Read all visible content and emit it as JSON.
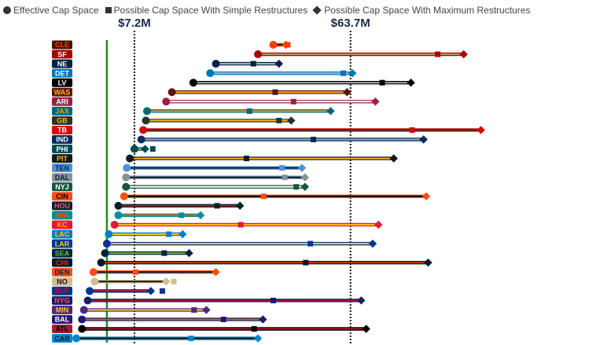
{
  "legend": {
    "effective": "Effective Cap Space",
    "simple": "Possible Cap Space With Simple Restructures",
    "maximum": "Possible Cap Space With Maximum Restructures"
  },
  "chart_data": {
    "type": "dumbbell",
    "title": "",
    "xlabel": "",
    "ylabel": "",
    "legend_position": "top-left",
    "grid": false,
    "xlim": [
      -8,
      109
    ],
    "reference_lines": [
      {
        "label": "$7.2M",
        "value": 7.2,
        "style": "dotted",
        "color": "#111111"
      },
      {
        "label": "$63.7M",
        "value": 63.7,
        "style": "dotted",
        "color": "#111111"
      },
      {
        "label": "",
        "value": 0,
        "style": "solid",
        "color": "#1f8f1f"
      }
    ],
    "series": [
      {
        "team": "CLE",
        "effective": 43.5,
        "simple": 47.3,
        "maximum": 46.8,
        "primary": "#ff3c00",
        "secondary": "#311d00",
        "label_bg": "#311d00",
        "label_fg": "#ff3c00"
      },
      {
        "team": "SF",
        "effective": 39.5,
        "simple": 86.5,
        "maximum": 93.3,
        "primary": "#aa0000",
        "secondary": "#b3995d",
        "label_bg": "#aa0000",
        "label_fg": "#ffffff"
      },
      {
        "team": "NE",
        "effective": 28.5,
        "simple": 38.3,
        "maximum": 45.0,
        "primary": "#002244",
        "secondary": "#b0b7bc",
        "label_bg": "#002244",
        "label_fg": "#ffffff"
      },
      {
        "team": "DET",
        "effective": 27.0,
        "simple": 61.8,
        "maximum": 64.2,
        "primary": "#0076b6",
        "secondary": "#b0b7bc",
        "label_bg": "#0076b6",
        "label_fg": "#ffffff"
      },
      {
        "team": "LV",
        "effective": 22.6,
        "simple": 72.0,
        "maximum": 79.5,
        "primary": "#000000",
        "secondary": "#a5acaf",
        "label_bg": "#000000",
        "label_fg": "#ffffff"
      },
      {
        "team": "WAS",
        "effective": 17.0,
        "simple": 44.0,
        "maximum": 62.8,
        "primary": "#5a1414",
        "secondary": "#ffb612",
        "label_bg": "#5a1414",
        "label_fg": "#ffb612"
      },
      {
        "team": "ARI",
        "effective": 15.5,
        "simple": 48.8,
        "maximum": 70.2,
        "primary": "#97233f",
        "secondary": "#ffffff",
        "label_bg": "#97233f",
        "label_fg": "#ffffff"
      },
      {
        "team": "JAX",
        "effective": 10.5,
        "simple": 37.3,
        "maximum": 58.5,
        "primary": "#006778",
        "secondary": "#d7a22a",
        "label_bg": "#006778",
        "label_fg": "#d7a22a"
      },
      {
        "team": "GB",
        "effective": 10.2,
        "simple": 45.0,
        "maximum": 48.2,
        "primary": "#203731",
        "secondary": "#ffb612",
        "label_bg": "#203731",
        "label_fg": "#ffb612"
      },
      {
        "team": "TB",
        "effective": 9.5,
        "simple": 79.8,
        "maximum": 97.8,
        "primary": "#d50a0a",
        "secondary": "#34302b",
        "label_bg": "#d50a0a",
        "label_fg": "#ffffff"
      },
      {
        "team": "IND",
        "effective": 9.0,
        "simple": 54.0,
        "maximum": 82.8,
        "primary": "#002c5f",
        "secondary": "#a2aaad",
        "label_bg": "#002c5f",
        "label_fg": "#ffffff"
      },
      {
        "team": "PHI",
        "effective": 7.2,
        "simple": 12.0,
        "maximum": 10.0,
        "primary": "#004c54",
        "secondary": "#a5acaf",
        "label_bg": "#004c54",
        "label_fg": "#ffffff"
      },
      {
        "team": "PIT",
        "effective": 6.0,
        "simple": 36.5,
        "maximum": 75.0,
        "primary": "#101820",
        "secondary": "#ffb612",
        "label_bg": "#101820",
        "label_fg": "#ffb612"
      },
      {
        "team": "TEN",
        "effective": 5.2,
        "simple": 45.8,
        "maximum": 51.0,
        "primary": "#4b92db",
        "secondary": "#0c2340",
        "label_bg": "#4b92db",
        "label_fg": "#0c2340"
      },
      {
        "team": "DAL",
        "effective": 5.0,
        "simple": 46.5,
        "maximum": 51.8,
        "primary": "#869397",
        "secondary": "#041e42",
        "label_bg": "#869397",
        "label_fg": "#041e42"
      },
      {
        "team": "NYJ",
        "effective": 5.0,
        "simple": 49.5,
        "maximum": 51.8,
        "primary": "#125740",
        "secondary": "#ffffff",
        "label_bg": "#125740",
        "label_fg": "#ffffff"
      },
      {
        "team": "CIN",
        "effective": 4.5,
        "simple": 41.0,
        "maximum": 83.5,
        "primary": "#fb4f14",
        "secondary": "#000000",
        "label_bg": "#fb4f14",
        "label_fg": "#000000"
      },
      {
        "team": "HOU",
        "effective": 3.0,
        "simple": 28.8,
        "maximum": 34.8,
        "primary": "#03202f",
        "secondary": "#a71930",
        "label_bg": "#03202f",
        "label_fg": "#ff4d6a"
      },
      {
        "team": "MIA",
        "effective": 3.0,
        "simple": 19.5,
        "maximum": 24.5,
        "primary": "#008e97",
        "secondary": "#fc4c02",
        "label_bg": "#008e97",
        "label_fg": "#fc4c02"
      },
      {
        "team": "KC",
        "effective": 2.0,
        "simple": 35.0,
        "maximum": 71.0,
        "primary": "#e31837",
        "secondary": "#ffb81c",
        "label_bg": "#e31837",
        "label_fg": "#ffb81c"
      },
      {
        "team": "LAC",
        "effective": 0.5,
        "simple": 16.2,
        "maximum": 19.8,
        "primary": "#0080c6",
        "secondary": "#ffc20e",
        "label_bg": "#0080c6",
        "label_fg": "#ffc20e"
      },
      {
        "team": "LAR",
        "effective": 0.0,
        "simple": 53.2,
        "maximum": 69.5,
        "primary": "#003594",
        "secondary": "#ffd100",
        "label_bg": "#003594",
        "label_fg": "#ffd100"
      },
      {
        "team": "SEA",
        "effective": -0.5,
        "simple": 15.0,
        "maximum": 21.5,
        "primary": "#002244",
        "secondary": "#69be28",
        "label_bg": "#002244",
        "label_fg": "#69be28"
      },
      {
        "team": "CHI",
        "effective": -1.5,
        "simple": 52.0,
        "maximum": 84.0,
        "primary": "#0b162a",
        "secondary": "#c83803",
        "label_bg": "#0b162a",
        "label_fg": "#c83803"
      },
      {
        "team": "DEN",
        "effective": -3.5,
        "simple": 7.5,
        "maximum": 28.5,
        "primary": "#fb4f14",
        "secondary": "#002244",
        "label_bg": "#fb4f14",
        "label_fg": "#002244"
      },
      {
        "team": "NO",
        "effective": -3.2,
        "simple": 17.5,
        "maximum": 15.5,
        "primary": "#d3bc8d",
        "secondary": "#101820",
        "label_bg": "#d3bc8d",
        "label_fg": "#101820"
      },
      {
        "team": "BUF",
        "effective": -4.5,
        "simple": 14.5,
        "maximum": 11.5,
        "primary": "#00338d",
        "secondary": "#c60c30",
        "label_bg": "#00338d",
        "label_fg": "#c60c30"
      },
      {
        "team": "NYG",
        "effective": -5.0,
        "simple": 43.5,
        "maximum": 66.5,
        "primary": "#0b2265",
        "secondary": "#a71930",
        "label_bg": "#0b2265",
        "label_fg": "#ff4d6a"
      },
      {
        "team": "MIN",
        "effective": -6.0,
        "simple": 22.8,
        "maximum": 26.0,
        "primary": "#4f2683",
        "secondary": "#ffc62f",
        "label_bg": "#4f2683",
        "label_fg": "#ffc62f"
      },
      {
        "team": "BAL",
        "effective": -6.5,
        "simple": 30.5,
        "maximum": 40.8,
        "primary": "#241773",
        "secondary": "#9e7c0c",
        "label_bg": "#241773",
        "label_fg": "#ffffff"
      },
      {
        "team": "ATL",
        "effective": -6.5,
        "simple": 38.5,
        "maximum": 67.8,
        "primary": "#000000",
        "secondary": "#a71930",
        "label_bg": "#a71930",
        "label_fg": "#000000"
      },
      {
        "team": "CAR",
        "effective": -8.0,
        "simple": 22.0,
        "maximum": 39.5,
        "primary": "#0085ca",
        "secondary": "#101820",
        "label_bg": "#0085ca",
        "label_fg": "#101820"
      }
    ]
  }
}
